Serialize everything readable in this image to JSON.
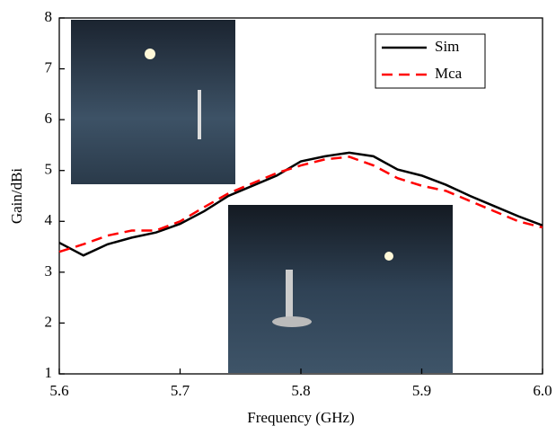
{
  "chart_data": {
    "type": "line",
    "x_label": "Frequency (GHz)",
    "y_label": "Gain/dBi",
    "x": [
      5.6,
      5.62,
      5.64,
      5.66,
      5.68,
      5.7,
      5.72,
      5.74,
      5.76,
      5.78,
      5.8,
      5.82,
      5.84,
      5.86,
      5.88,
      5.9,
      5.92,
      5.94,
      5.96,
      5.98,
      6.0
    ],
    "series": [
      {
        "name": "Sim",
        "color": "#000000",
        "dash": false,
        "values": [
          3.58,
          3.33,
          3.55,
          3.68,
          3.78,
          3.95,
          4.2,
          4.5,
          4.7,
          4.9,
          5.18,
          5.28,
          5.35,
          5.28,
          5.02,
          4.9,
          4.72,
          4.5,
          4.3,
          4.1,
          3.92
        ]
      },
      {
        "name": "Mca",
        "color": "#ff0000",
        "dash": true,
        "values": [
          3.4,
          3.55,
          3.72,
          3.82,
          3.82,
          4.0,
          4.28,
          4.55,
          4.75,
          4.95,
          5.1,
          5.22,
          5.27,
          5.1,
          4.85,
          4.7,
          4.6,
          4.4,
          4.2,
          4.0,
          3.88
        ]
      }
    ],
    "xlim": [
      5.6,
      6.0
    ],
    "xticks": [
      5.6,
      5.7,
      5.8,
      5.9,
      {
        "value": 6,
        "label": "6.0"
      }
    ],
    "ylim": [
      1,
      8
    ],
    "yticks": [
      1,
      2,
      3,
      4,
      5,
      6,
      7,
      8
    ],
    "legend": "upper right"
  }
}
